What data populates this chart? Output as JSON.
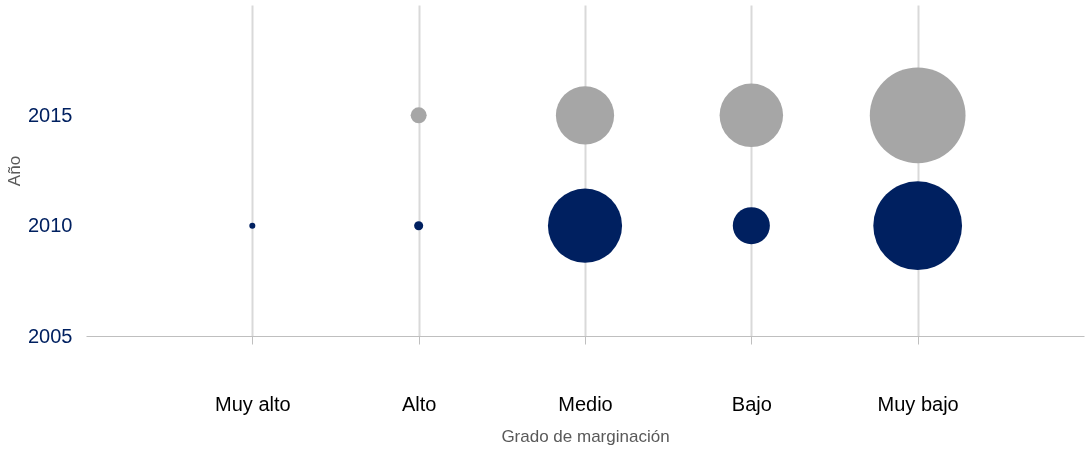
{
  "chart_data": {
    "type": "bubble",
    "xlabel": "Grado de marginación",
    "ylabel": "Año",
    "categories": [
      "Muy alto",
      "Alto",
      "Medio",
      "Bajo",
      "Muy bajo"
    ],
    "series": [
      {
        "color": "#002060",
        "values": [
          2010,
          2010,
          2010,
          2010,
          2010
        ],
        "sizes": [
          0.004,
          0.009,
          0.6,
          0.15,
          0.86
        ]
      },
      {
        "color": "#a6a6a6",
        "values": [
          null,
          2015,
          2015,
          2015,
          2015
        ],
        "sizes": [
          null,
          0.028,
          0.37,
          0.44,
          1
        ]
      }
    ],
    "ylim": [
      2005,
      2020
    ],
    "yticks": [
      2005,
      2010,
      2015
    ],
    "grid": "x",
    "legend": false
  }
}
